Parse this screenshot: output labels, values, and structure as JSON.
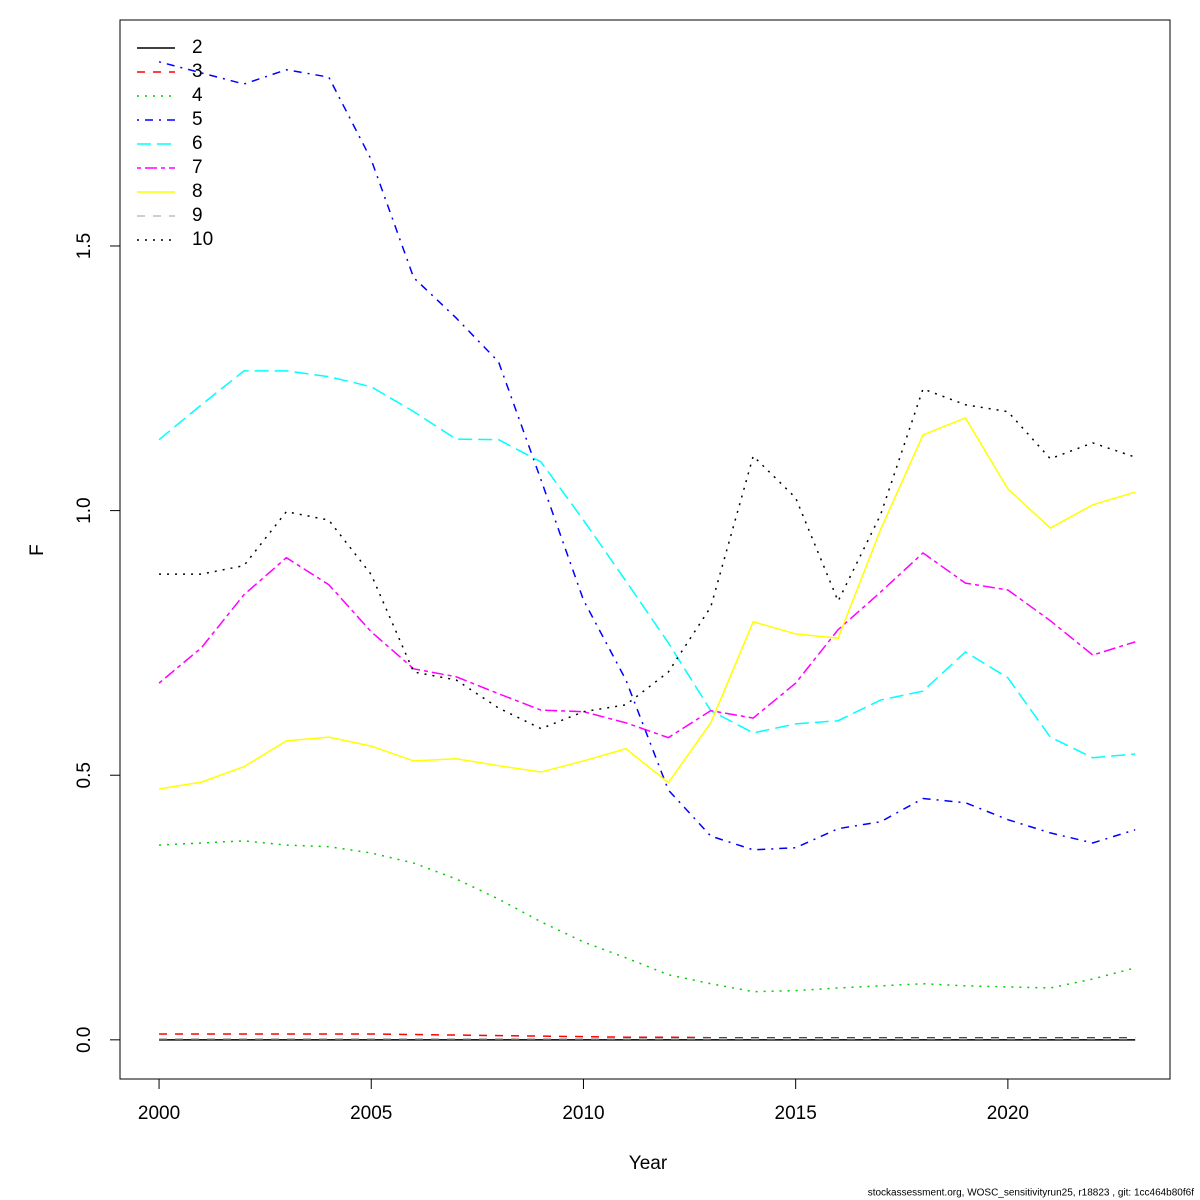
{
  "chart_data": {
    "type": "line",
    "xlabel": "Year",
    "ylabel": "F",
    "caption": "stockassessment.org, WOSC_sensitivityrun25, r18823 , git: 1cc464b80f6f",
    "x": [
      2000,
      2001,
      2002,
      2003,
      2004,
      2005,
      2006,
      2007,
      2008,
      2009,
      2010,
      2011,
      2012,
      2013,
      2014,
      2015,
      2016,
      2017,
      2018,
      2019,
      2020,
      2021,
      2022,
      2023
    ],
    "xlim": [
      1999.08,
      2023.82
    ],
    "xticks": [
      2000,
      2005,
      2010,
      2015,
      2020
    ],
    "ylim": [
      -0.074,
      1.927
    ],
    "yticks": [
      {
        "value": 0,
        "label": "0.0"
      },
      0.5,
      {
        "value": 1,
        "label": "1.0"
      },
      1.5
    ],
    "legend": "top-left",
    "series": [
      {
        "name": "2",
        "color": "#000000",
        "linestyle": "solid",
        "values": [
          0,
          0,
          0,
          0,
          0,
          0,
          0,
          0,
          0,
          0,
          0,
          0,
          0,
          0,
          0,
          0,
          0,
          0,
          0,
          0,
          0,
          0,
          0,
          0
        ]
      },
      {
        "name": "3",
        "color": "#ff0000",
        "linestyle": "dashed",
        "values": [
          0.011,
          0.011,
          0.011,
          0.011,
          0.011,
          0.011,
          0.01,
          0.009,
          0.008,
          0.007,
          0.006,
          0.005,
          0.005,
          0.004,
          0.004,
          0.004,
          0.004,
          0.004,
          0.004,
          0.004,
          0.004,
          0.004,
          0.004,
          0.004
        ]
      },
      {
        "name": "4",
        "color": "#00cd00",
        "linestyle": "dotted",
        "values": [
          0.368,
          0.372,
          0.376,
          0.368,
          0.365,
          0.353,
          0.334,
          0.304,
          0.266,
          0.223,
          0.185,
          0.155,
          0.123,
          0.106,
          0.091,
          0.093,
          0.098,
          0.102,
          0.106,
          0.102,
          0.1,
          0.098,
          0.115,
          0.136
        ]
      },
      {
        "name": "5",
        "color": "#0000ff",
        "linestyle": "dotdash",
        "values": [
          1.848,
          1.827,
          1.806,
          1.833,
          1.819,
          1.663,
          1.44,
          1.364,
          1.281,
          1.058,
          0.831,
          0.68,
          0.472,
          0.385,
          0.359,
          0.363,
          0.399,
          0.412,
          0.456,
          0.448,
          0.416,
          0.391,
          0.372,
          0.397
        ]
      },
      {
        "name": "6",
        "color": "#00ffff",
        "linestyle": "longdash",
        "values": [
          1.134,
          1.2,
          1.264,
          1.264,
          1.253,
          1.234,
          1.187,
          1.135,
          1.134,
          1.092,
          0.982,
          0.867,
          0.75,
          0.622,
          0.58,
          0.597,
          0.603,
          0.642,
          0.659,
          0.733,
          0.684,
          0.572,
          0.533,
          0.54
        ]
      },
      {
        "name": "7",
        "color": "#ff00ff",
        "linestyle": "twodash",
        "values": [
          0.674,
          0.741,
          0.841,
          0.911,
          0.86,
          0.771,
          0.701,
          0.686,
          0.654,
          0.623,
          0.62,
          0.599,
          0.571,
          0.622,
          0.608,
          0.674,
          0.775,
          0.846,
          0.92,
          0.863,
          0.85,
          0.792,
          0.727,
          0.752
        ]
      },
      {
        "name": "8",
        "color": "#ffff00",
        "linestyle": "solid",
        "values": [
          0.474,
          0.487,
          0.516,
          0.565,
          0.572,
          0.555,
          0.527,
          0.531,
          0.518,
          0.506,
          0.527,
          0.55,
          0.486,
          0.599,
          0.79,
          0.767,
          0.759,
          0.964,
          1.143,
          1.175,
          1.041,
          0.967,
          1.011,
          1.035
        ]
      },
      {
        "name": "9",
        "color": "#bebebe",
        "linestyle": "dashed",
        "values": [
          0.002,
          0.002,
          0.002,
          0.002,
          0.002,
          0.002,
          0.002,
          0.002,
          0.002,
          0.002,
          0.002,
          0.002,
          0.002,
          0.002,
          0.002,
          0.002,
          0.002,
          0.002,
          0.002,
          0.002,
          0.002,
          0.002,
          0.002,
          0.002
        ]
      },
      {
        "name": "10",
        "color": "#000000",
        "linestyle": "dotted",
        "values": [
          0.88,
          0.88,
          0.896,
          0.998,
          0.982,
          0.879,
          0.695,
          0.68,
          0.627,
          0.588,
          0.62,
          0.633,
          0.695,
          0.818,
          1.103,
          1.024,
          0.829,
          0.992,
          1.23,
          1.2,
          1.187,
          1.098,
          1.128,
          1.101
        ]
      }
    ]
  }
}
